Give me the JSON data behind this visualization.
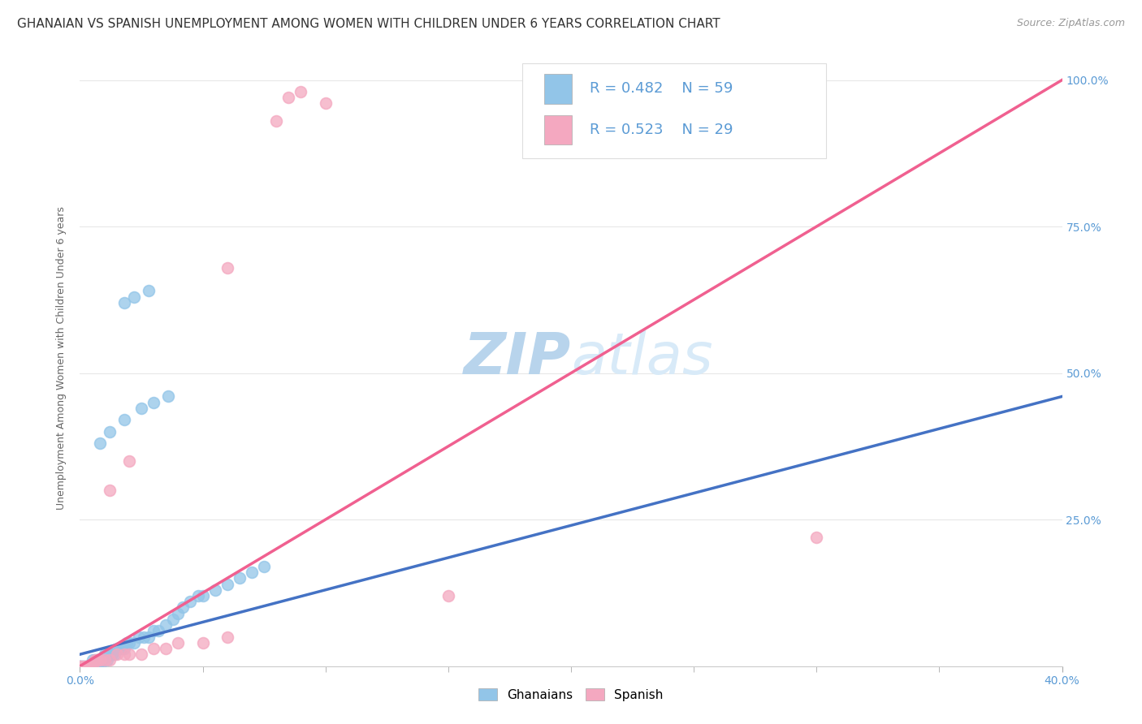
{
  "title": "GHANAIAN VS SPANISH UNEMPLOYMENT AMONG WOMEN WITH CHILDREN UNDER 6 YEARS CORRELATION CHART",
  "source_text": "Source: ZipAtlas.com",
  "ylabel": "Unemployment Among Women with Children Under 6 years",
  "xlim": [
    0.0,
    0.4
  ],
  "ylim": [
    0.0,
    1.05
  ],
  "legend_r1": "R = 0.482",
  "legend_n1": "N = 59",
  "legend_r2": "R = 0.523",
  "legend_n2": "N = 29",
  "ghanaian_color": "#92C5E8",
  "spanish_color": "#F4A8C0",
  "ghanaian_line_color": "#4472C4",
  "spanish_line_color": "#F06090",
  "ref_line_color": "#BBBBBB",
  "watermark_color": "#D0E8F8",
  "title_fontsize": 11,
  "axis_label_fontsize": 9,
  "tick_fontsize": 10,
  "legend_fontsize": 13,
  "watermark_fontsize": 52,
  "ghanaians_x": [
    0.0,
    0.0,
    0.0,
    0.001,
    0.001,
    0.002,
    0.002,
    0.003,
    0.003,
    0.004,
    0.004,
    0.005,
    0.005,
    0.006,
    0.006,
    0.007,
    0.007,
    0.008,
    0.008,
    0.009,
    0.01,
    0.01,
    0.011,
    0.012,
    0.013,
    0.014,
    0.015,
    0.016,
    0.017,
    0.018,
    0.019,
    0.02,
    0.022,
    0.024,
    0.026,
    0.028,
    0.03,
    0.032,
    0.035,
    0.038,
    0.04,
    0.042,
    0.045,
    0.048,
    0.05,
    0.055,
    0.06,
    0.065,
    0.07,
    0.075,
    0.008,
    0.012,
    0.018,
    0.025,
    0.03,
    0.036,
    0.018,
    0.022,
    0.028
  ],
  "ghanaians_y": [
    0.0,
    0.0,
    0.0,
    0.0,
    0.0,
    0.0,
    0.0,
    0.0,
    0.0,
    0.0,
    0.0,
    0.0,
    0.01,
    0.0,
    0.01,
    0.0,
    0.01,
    0.0,
    0.01,
    0.01,
    0.01,
    0.02,
    0.01,
    0.02,
    0.02,
    0.02,
    0.03,
    0.03,
    0.03,
    0.03,
    0.04,
    0.04,
    0.04,
    0.05,
    0.05,
    0.05,
    0.06,
    0.06,
    0.07,
    0.08,
    0.09,
    0.1,
    0.11,
    0.12,
    0.12,
    0.13,
    0.14,
    0.15,
    0.16,
    0.17,
    0.38,
    0.4,
    0.42,
    0.44,
    0.45,
    0.46,
    0.62,
    0.63,
    0.64
  ],
  "spanish_x": [
    0.0,
    0.001,
    0.002,
    0.003,
    0.004,
    0.005,
    0.006,
    0.007,
    0.008,
    0.01,
    0.012,
    0.015,
    0.018,
    0.02,
    0.025,
    0.03,
    0.035,
    0.04,
    0.05,
    0.06,
    0.012,
    0.02,
    0.06,
    0.08,
    0.085,
    0.09,
    0.1,
    0.3,
    0.15
  ],
  "spanish_y": [
    0.0,
    0.0,
    0.0,
    0.0,
    0.0,
    0.0,
    0.01,
    0.01,
    0.01,
    0.01,
    0.01,
    0.02,
    0.02,
    0.02,
    0.02,
    0.03,
    0.03,
    0.04,
    0.04,
    0.05,
    0.3,
    0.35,
    0.68,
    0.93,
    0.97,
    0.98,
    0.96,
    0.22,
    0.12
  ],
  "gh_line_x": [
    0.0,
    0.4
  ],
  "gh_line_y": [
    0.02,
    0.46
  ],
  "sp_line_x": [
    0.0,
    0.4
  ],
  "sp_line_y": [
    0.0,
    1.0
  ],
  "ref_line_x": [
    0.0,
    0.4
  ],
  "ref_line_y": [
    0.0,
    1.0
  ]
}
